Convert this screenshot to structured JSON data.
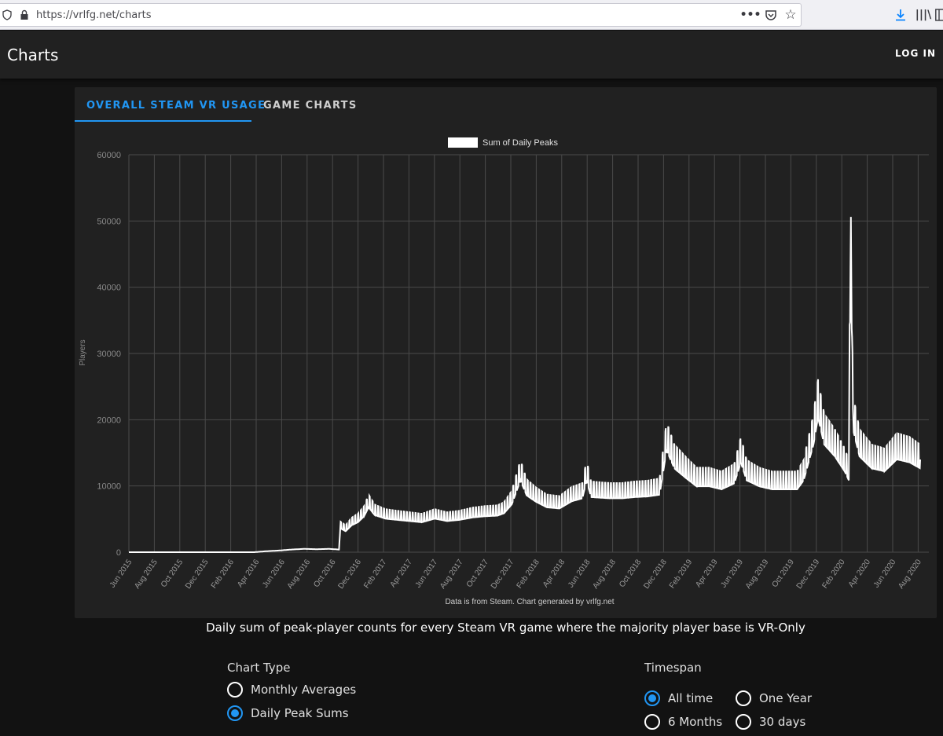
{
  "browser": {
    "url": "https://vrlfg.net/charts",
    "icons": [
      "shield-icon",
      "lock-icon",
      "more-icon",
      "pocket-icon",
      "star-icon",
      "download-icon",
      "library-icon",
      "sidebar-icon"
    ]
  },
  "app": {
    "title": "Charts",
    "login_label": "LOG IN"
  },
  "tabs": [
    {
      "label": "OVERALL STEAM VR USAGE",
      "active": true
    },
    {
      "label": "GAME CHARTS",
      "active": false
    }
  ],
  "chart_data": {
    "type": "line",
    "legend": "Sum of Daily Peaks",
    "ylabel": "Players",
    "footer": "Data is from Steam.  Chart generated by vrlfg.net",
    "ylim": [
      0,
      60000
    ],
    "y_ticks": [
      0,
      10000,
      20000,
      30000,
      40000,
      50000,
      60000
    ],
    "x_ticks": [
      "Jun 2015",
      "Aug 2015",
      "Oct 2015",
      "Dec 2015",
      "Feb 2016",
      "Apr 2016",
      "Jun 2016",
      "Aug 2016",
      "Oct 2016",
      "Dec 2016",
      "Feb 2017",
      "Apr 2017",
      "Jun 2017",
      "Aug 2017",
      "Oct 2017",
      "Dec 2017",
      "Feb 2018",
      "Apr 2018",
      "Jun 2018",
      "Aug 2018",
      "Oct 2018",
      "Dec 2018",
      "Feb 2019",
      "Apr 2019",
      "Jun 2019",
      "Aug 2019",
      "Oct 2019",
      "Dec 2019",
      "Feb 2020",
      "Apr 2020",
      "Jun 2020",
      "Aug 2020"
    ],
    "grid": true,
    "line_color": "#ffffff",
    "series": [
      {
        "name": "Sum of Daily Peaks",
        "points": [
          [
            "2015-06-01",
            0
          ],
          [
            "2016-04-01",
            0
          ],
          [
            "2016-05-01",
            150
          ],
          [
            "2016-06-01",
            250
          ],
          [
            "2016-07-01",
            400
          ],
          [
            "2016-08-01",
            500
          ],
          [
            "2016-09-01",
            450
          ],
          [
            "2016-10-01",
            500
          ],
          [
            "2016-10-25",
            400
          ],
          [
            "2016-10-28",
            4000
          ],
          [
            "2016-11-10",
            3500
          ],
          [
            "2016-11-25",
            4500
          ],
          [
            "2016-12-10",
            5000
          ],
          [
            "2016-12-25",
            6000
          ],
          [
            "2017-01-05",
            7500
          ],
          [
            "2017-01-20",
            6200
          ],
          [
            "2017-02-15",
            5600
          ],
          [
            "2017-03-15",
            5400
          ],
          [
            "2017-04-15",
            5200
          ],
          [
            "2017-05-15",
            5000
          ],
          [
            "2017-06-15",
            5600
          ],
          [
            "2017-07-15",
            5200
          ],
          [
            "2017-08-15",
            5400
          ],
          [
            "2017-09-15",
            5800
          ],
          [
            "2017-10-15",
            6000
          ],
          [
            "2017-11-15",
            6100
          ],
          [
            "2017-12-01",
            6500
          ],
          [
            "2017-12-20",
            8000
          ],
          [
            "2018-01-10",
            12000
          ],
          [
            "2018-01-25",
            9500
          ],
          [
            "2018-02-15",
            8500
          ],
          [
            "2018-03-15",
            7500
          ],
          [
            "2018-04-15",
            7300
          ],
          [
            "2018-05-15",
            8500
          ],
          [
            "2018-06-10",
            9000
          ],
          [
            "2018-06-20",
            12000
          ],
          [
            "2018-07-01",
            9200
          ],
          [
            "2018-08-15",
            9000
          ],
          [
            "2018-09-15",
            9000
          ],
          [
            "2018-10-15",
            9200
          ],
          [
            "2018-11-15",
            9300
          ],
          [
            "2018-12-15",
            9600
          ],
          [
            "2019-01-01",
            17000
          ],
          [
            "2019-01-20",
            14000
          ],
          [
            "2019-02-15",
            12500
          ],
          [
            "2019-03-15",
            11000
          ],
          [
            "2019-04-15",
            11000
          ],
          [
            "2019-05-15",
            10500
          ],
          [
            "2019-06-15",
            11500
          ],
          [
            "2019-07-01",
            15000
          ],
          [
            "2019-07-15",
            12000
          ],
          [
            "2019-08-15",
            11000
          ],
          [
            "2019-09-15",
            10500
          ],
          [
            "2019-10-15",
            10500
          ],
          [
            "2019-11-15",
            10500
          ],
          [
            "2019-12-01",
            12000
          ],
          [
            "2019-12-25",
            18000
          ],
          [
            "2020-01-05",
            22500
          ],
          [
            "2020-01-20",
            18000
          ],
          [
            "2020-02-15",
            16000
          ],
          [
            "2020-03-10",
            13500
          ],
          [
            "2020-03-20",
            12000
          ],
          [
            "2020-03-25",
            56000
          ],
          [
            "2020-03-28",
            28000
          ],
          [
            "2020-04-01",
            20000
          ],
          [
            "2020-04-15",
            16000
          ],
          [
            "2020-05-15",
            14000
          ],
          [
            "2020-06-15",
            13500
          ],
          [
            "2020-07-15",
            15500
          ],
          [
            "2020-08-15",
            15000
          ],
          [
            "2020-09-10",
            14000
          ]
        ]
      }
    ]
  },
  "description": "Daily sum of peak-player counts for every Steam VR game where the majority player base is VR-Only",
  "chart_type": {
    "title": "Chart Type",
    "options": [
      {
        "label": "Monthly Averages",
        "checked": false
      },
      {
        "label": "Daily Peak Sums",
        "checked": true
      }
    ]
  },
  "timespan": {
    "title": "Timespan",
    "options": [
      {
        "label": "All time",
        "checked": true
      },
      {
        "label": "One Year",
        "checked": false
      },
      {
        "label": "6 Months",
        "checked": false
      },
      {
        "label": "30 days",
        "checked": false
      }
    ]
  },
  "colors": {
    "accent": "#2196f3",
    "background": "#121212",
    "card": "#212121",
    "app_bar": "#212121"
  }
}
